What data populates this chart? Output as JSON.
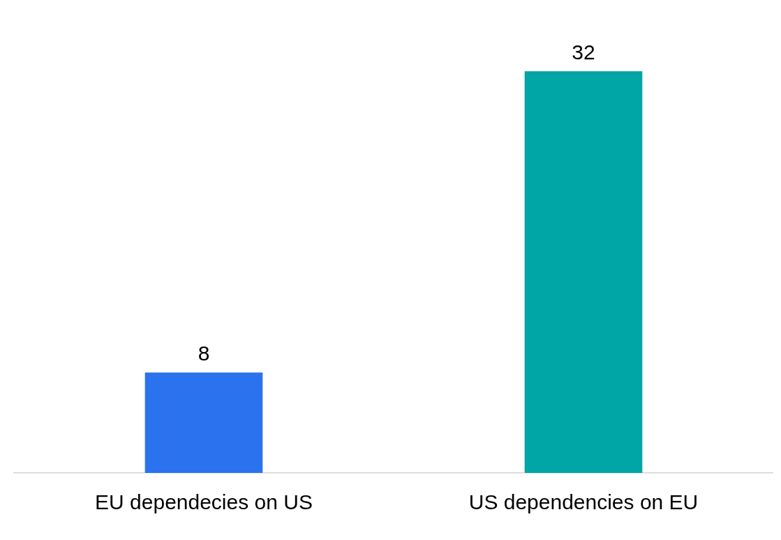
{
  "chart_data": {
    "type": "bar",
    "categories": [
      "EU dependecies on US",
      "US dependencies on EU"
    ],
    "values": [
      8,
      32
    ],
    "colors": [
      "#2b72ee",
      "#00a5a5"
    ],
    "data_labels": true,
    "grid": false,
    "legend": false,
    "tick_labels": "x"
  }
}
